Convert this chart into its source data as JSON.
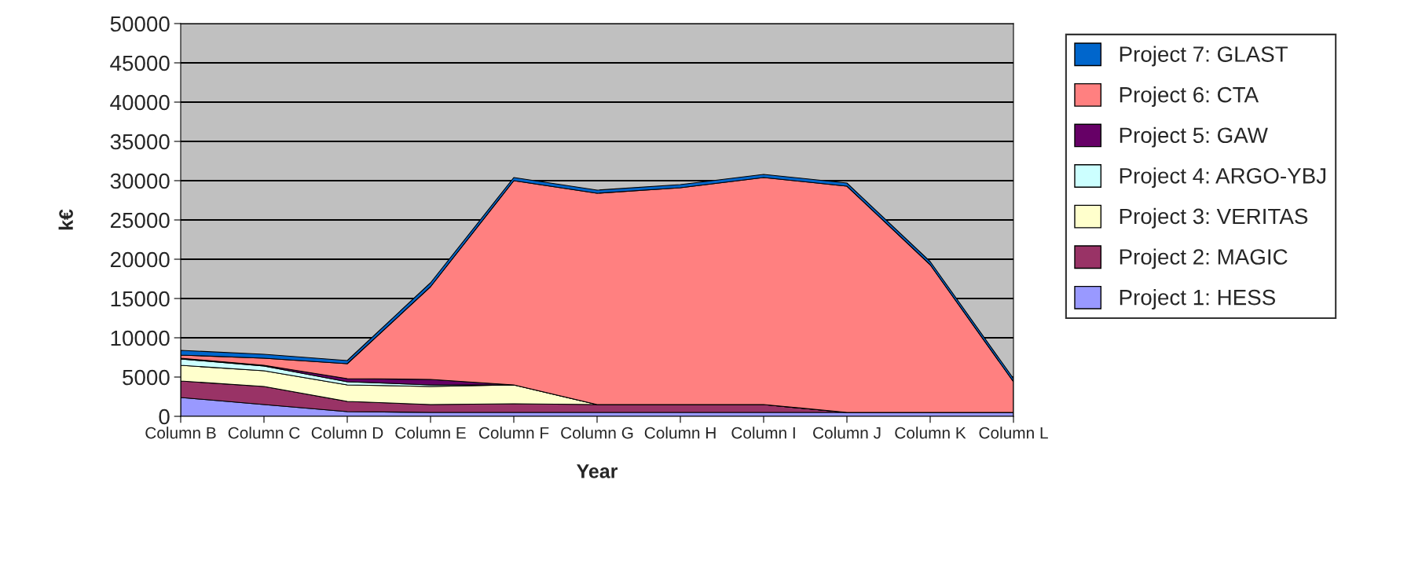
{
  "chart_data": {
    "type": "area",
    "stacked": true,
    "xlabel": "Year",
    "ylabel": "k€",
    "categories": [
      "Column B",
      "Column C",
      "Column D",
      "Column E",
      "Column F",
      "Column G",
      "Column H",
      "Column I",
      "Column J",
      "Column K",
      "Column L"
    ],
    "series": [
      {
        "name": "Project 1: HESS",
        "color": "#9999ff",
        "values": [
          2400,
          1500,
          600,
          500,
          500,
          500,
          500,
          500,
          500,
          500,
          500
        ]
      },
      {
        "name": "Project 2: MAGIC",
        "color": "#993366",
        "values": [
          2100,
          2300,
          1300,
          1000,
          1100,
          1000,
          1000,
          1000,
          0,
          0,
          0
        ]
      },
      {
        "name": "Project 3: VERITAS",
        "color": "#ffffcc",
        "values": [
          2000,
          2000,
          2100,
          2300,
          2400,
          0,
          0,
          0,
          0,
          0,
          0
        ]
      },
      {
        "name": "Project 4: ARGO-YBJ",
        "color": "#ccffff",
        "values": [
          800,
          600,
          400,
          200,
          0,
          0,
          0,
          0,
          0,
          0,
          0
        ]
      },
      {
        "name": "Project 5: GAW",
        "color": "#660066",
        "values": [
          100,
          100,
          400,
          700,
          0,
          null,
          null,
          null,
          null,
          null,
          null
        ]
      },
      {
        "name": "Project 6: CTA",
        "color": "#ff8080",
        "values": [
          400,
          900,
          1900,
          11800,
          26000,
          26900,
          27600,
          28900,
          28800,
          18800,
          3900
        ]
      },
      {
        "name": "Project 7: GLAST",
        "color": "#0066cc",
        "values": [
          600,
          500,
          400,
          500,
          400,
          400,
          400,
          400,
          400,
          400,
          400
        ]
      }
    ],
    "ylim": [
      0,
      50000
    ],
    "yticks": [
      0,
      5000,
      10000,
      15000,
      20000,
      25000,
      30000,
      35000,
      40000,
      45000,
      50000
    ],
    "grid": "y",
    "legend": "right"
  }
}
